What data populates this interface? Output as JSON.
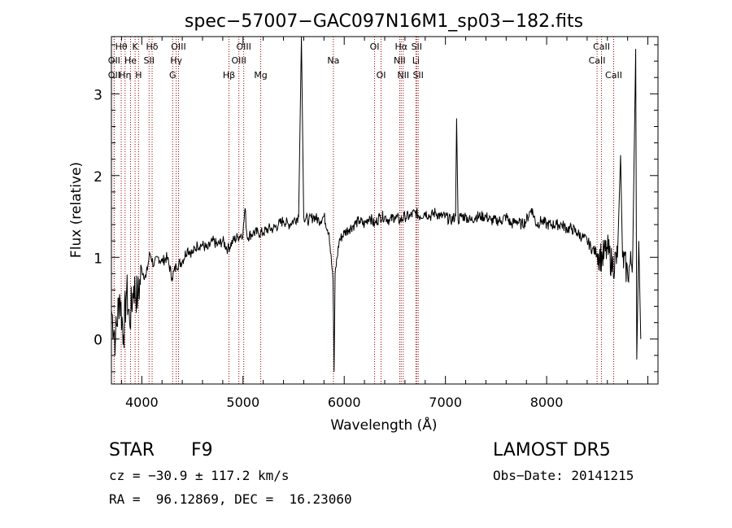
{
  "chart_data": {
    "type": "line",
    "title": "spec−57007−GAC097N16M1_sp03−182.fits",
    "xlabel": "Wavelength (Å)",
    "ylabel": "Flux (relative)",
    "xlim": [
      3700,
      9100
    ],
    "ylim": [
      -0.55,
      3.7
    ],
    "xticks": [
      4000,
      5000,
      6000,
      7000,
      8000
    ],
    "yticks": [
      0,
      1,
      2,
      3
    ],
    "grid": false,
    "line_color": "#000000",
    "marker_color": "#990000",
    "spectrum": {
      "name": "",
      "points": [
        [
          3700,
          0.35
        ],
        [
          3740,
          0.0
        ],
        [
          3780,
          0.55
        ],
        [
          3820,
          0.05
        ],
        [
          3850,
          0.6
        ],
        [
          3880,
          0.2
        ],
        [
          3920,
          0.65
        ],
        [
          3960,
          0.5
        ],
        [
          4000,
          0.85
        ],
        [
          4040,
          0.75
        ],
        [
          4080,
          1.05
        ],
        [
          4120,
          0.9
        ],
        [
          4160,
          1.0
        ],
        [
          4200,
          0.95
        ],
        [
          4250,
          1.0
        ],
        [
          4300,
          0.75
        ],
        [
          4340,
          0.9
        ],
        [
          4400,
          0.95
        ],
        [
          4450,
          1.1
        ],
        [
          4500,
          1.05
        ],
        [
          4550,
          1.15
        ],
        [
          4600,
          1.15
        ],
        [
          4650,
          1.1
        ],
        [
          4700,
          1.2
        ],
        [
          4750,
          1.15
        ],
        [
          4800,
          1.2
        ],
        [
          4850,
          1.1
        ],
        [
          4900,
          1.2
        ],
        [
          4950,
          1.25
        ],
        [
          5000,
          1.3
        ],
        [
          5020,
          1.6
        ],
        [
          5040,
          1.25
        ],
        [
          5100,
          1.3
        ],
        [
          5150,
          1.3
        ],
        [
          5200,
          1.3
        ],
        [
          5250,
          1.35
        ],
        [
          5300,
          1.35
        ],
        [
          5350,
          1.4
        ],
        [
          5400,
          1.45
        ],
        [
          5450,
          1.4
        ],
        [
          5500,
          1.45
        ],
        [
          5550,
          1.5
        ],
        [
          5577,
          3.75
        ],
        [
          5600,
          1.5
        ],
        [
          5650,
          1.45
        ],
        [
          5700,
          1.5
        ],
        [
          5750,
          1.45
        ],
        [
          5800,
          1.5
        ],
        [
          5850,
          1.3
        ],
        [
          5890,
          0.7
        ],
        [
          5900,
          -0.4
        ],
        [
          5910,
          0.8
        ],
        [
          5950,
          1.2
        ],
        [
          6000,
          1.3
        ],
        [
          6050,
          1.35
        ],
        [
          6100,
          1.4
        ],
        [
          6150,
          1.45
        ],
        [
          6200,
          1.4
        ],
        [
          6250,
          1.5
        ],
        [
          6300,
          1.4
        ],
        [
          6350,
          1.5
        ],
        [
          6400,
          1.5
        ],
        [
          6450,
          1.45
        ],
        [
          6500,
          1.5
        ],
        [
          6550,
          1.45
        ],
        [
          6600,
          1.5
        ],
        [
          6650,
          1.5
        ],
        [
          6700,
          1.55
        ],
        [
          6750,
          1.5
        ],
        [
          6800,
          1.55
        ],
        [
          6850,
          1.5
        ],
        [
          6900,
          1.55
        ],
        [
          6950,
          1.5
        ],
        [
          7000,
          1.5
        ],
        [
          7050,
          1.45
        ],
        [
          7100,
          1.5
        ],
        [
          7110,
          2.7
        ],
        [
          7125,
          1.45
        ],
        [
          7150,
          1.5
        ],
        [
          7200,
          1.5
        ],
        [
          7250,
          1.45
        ],
        [
          7300,
          1.5
        ],
        [
          7350,
          1.5
        ],
        [
          7400,
          1.5
        ],
        [
          7450,
          1.45
        ],
        [
          7500,
          1.45
        ],
        [
          7550,
          1.45
        ],
        [
          7600,
          1.5
        ],
        [
          7650,
          1.4
        ],
        [
          7700,
          1.45
        ],
        [
          7750,
          1.4
        ],
        [
          7800,
          1.45
        ],
        [
          7850,
          1.6
        ],
        [
          7900,
          1.4
        ],
        [
          7950,
          1.45
        ],
        [
          8000,
          1.4
        ],
        [
          8050,
          1.4
        ],
        [
          8100,
          1.4
        ],
        [
          8150,
          1.4
        ],
        [
          8200,
          1.35
        ],
        [
          8250,
          1.35
        ],
        [
          8300,
          1.3
        ],
        [
          8350,
          1.25
        ],
        [
          8400,
          1.2
        ],
        [
          8450,
          1.1
        ],
        [
          8500,
          1.05
        ],
        [
          8550,
          1.0
        ],
        [
          8600,
          1.1
        ],
        [
          8650,
          0.9
        ],
        [
          8700,
          1.0
        ],
        [
          8730,
          2.25
        ],
        [
          8750,
          1.0
        ],
        [
          8800,
          0.8
        ],
        [
          8850,
          1.0
        ],
        [
          8880,
          3.55
        ],
        [
          8890,
          -0.25
        ],
        [
          8910,
          1.2
        ],
        [
          8930,
          0.0
        ]
      ]
    },
    "line_markers": [
      {
        "label": "Hθ",
        "wavelength": 3797,
        "row": 1
      },
      {
        "label": "OII",
        "wavelength": 3727,
        "row": 2
      },
      {
        "label": "OII",
        "wavelength": 3727,
        "row": 3
      },
      {
        "label": "He",
        "wavelength": 3889,
        "row": 2
      },
      {
        "label": "Hη",
        "wavelength": 3835,
        "row": 3
      },
      {
        "label": "K",
        "wavelength": 3934,
        "row": 1
      },
      {
        "label": "H",
        "wavelength": 3968,
        "row": 3
      },
      {
        "label": "Hδ",
        "wavelength": 4102,
        "row": 1
      },
      {
        "label": "SII",
        "wavelength": 4072,
        "row": 2
      },
      {
        "label": "OIII",
        "wavelength": 4363,
        "row": 1
      },
      {
        "label": "Hγ",
        "wavelength": 4340,
        "row": 2
      },
      {
        "label": "G",
        "wavelength": 4305,
        "row": 3
      },
      {
        "label": "Hβ",
        "wavelength": 4861,
        "row": 3
      },
      {
        "label": "OIII",
        "wavelength": 4959,
        "row": 2
      },
      {
        "label": "OIII",
        "wavelength": 5007,
        "row": 1
      },
      {
        "label": "Mg",
        "wavelength": 5175,
        "row": 3
      },
      {
        "label": "Na",
        "wavelength": 5893,
        "row": 2
      },
      {
        "label": "OI",
        "wavelength": 6300,
        "row": 1
      },
      {
        "label": "OI",
        "wavelength": 6364,
        "row": 3
      },
      {
        "label": "NII",
        "wavelength": 6548,
        "row": 2
      },
      {
        "label": "Hα",
        "wavelength": 6563,
        "row": 1
      },
      {
        "label": "NII",
        "wavelength": 6583,
        "row": 3
      },
      {
        "label": "SII",
        "wavelength": 6716,
        "row": 1
      },
      {
        "label": "Li",
        "wavelength": 6708,
        "row": 2
      },
      {
        "label": "SII",
        "wavelength": 6731,
        "row": 3
      },
      {
        "label": "CaII",
        "wavelength": 8542,
        "row": 1
      },
      {
        "label": "CaII",
        "wavelength": 8498,
        "row": 2
      },
      {
        "label": "CaII",
        "wavelength": 8662,
        "row": 3
      }
    ]
  },
  "info": {
    "object_class": "STAR",
    "subclass": "F9",
    "survey": "LAMOST DR5",
    "redshift_line": "cz = −30.9 ± 117.2 km/s",
    "obs_date_line": "Obs−Date: 20141215",
    "coords_line": "RA =  96.12869, DEC =  16.23060"
  }
}
